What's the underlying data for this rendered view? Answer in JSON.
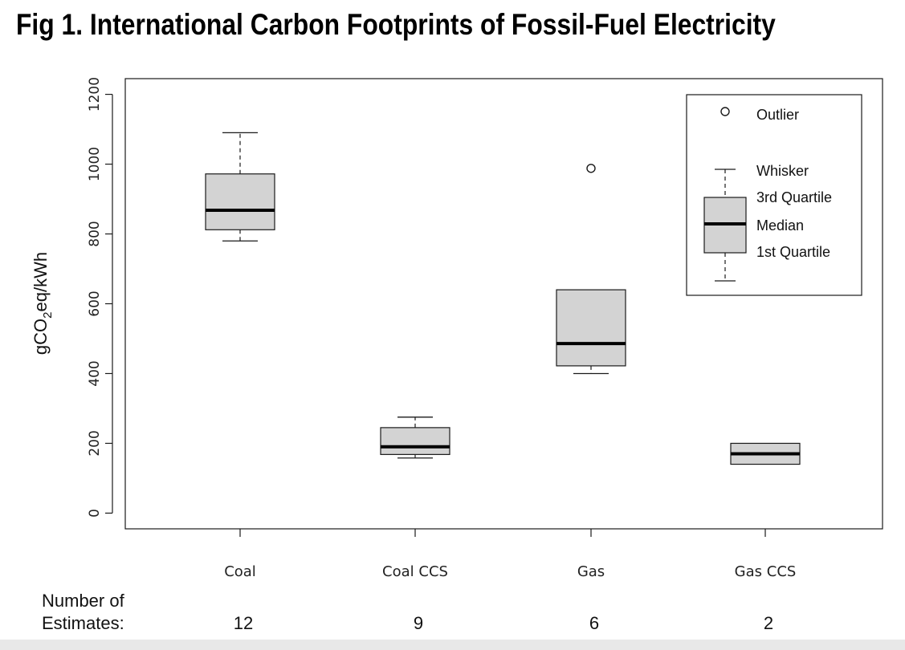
{
  "title": "Fig 1. International Carbon Footprints of Fossil-Fuel Electricity",
  "chart_data": {
    "type": "box",
    "title": "Fig 1. International Carbon Footprints of Fossil-Fuel Electricity",
    "ylabel": {
      "prefix": "gCO",
      "sub": "2",
      "suffix": "eq/kWh"
    },
    "ylim": [
      -45,
      1245
    ],
    "yticks": [
      0,
      200,
      400,
      600,
      800,
      1000,
      1200
    ],
    "categories": [
      "Coal",
      "Coal CCS",
      "Gas",
      "Gas CCS"
    ],
    "boxes": [
      {
        "category": "Coal",
        "whisker_low": 780,
        "q1": 812,
        "median": 868,
        "q3": 972,
        "whisker_high": 1090,
        "outliers": []
      },
      {
        "category": "Coal CCS",
        "whisker_low": 158,
        "q1": 168,
        "median": 190,
        "q3": 245,
        "whisker_high": 275,
        "outliers": []
      },
      {
        "category": "Gas",
        "whisker_low": 400,
        "q1": 422,
        "median": 486,
        "q3": 640,
        "whisker_high": 640,
        "outliers": [
          988
        ]
      },
      {
        "category": "Gas CCS",
        "whisker_low": 140,
        "q1": 140,
        "median": 170,
        "q3": 200,
        "whisker_high": 200,
        "outliers": []
      }
    ],
    "legend": {
      "position": "top-right",
      "items": [
        "Outlier",
        "Whisker",
        "3rd Quartile",
        "Median",
        "1st Quartile"
      ]
    },
    "count_label": [
      "Number of",
      "Estimates:"
    ],
    "counts": [
      12,
      9,
      6,
      2
    ],
    "colors": {
      "box_fill": "#d3d3d3",
      "stroke": "#1a1a1a"
    }
  }
}
